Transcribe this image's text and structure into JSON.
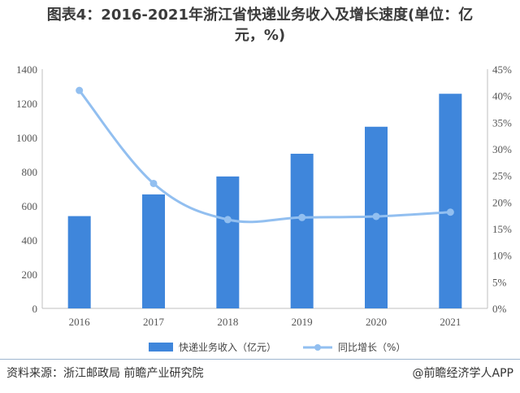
{
  "title": {
    "line1": "图表4：2016-2021年浙江省快递业务收入及增长速度(单位：亿",
    "line2": "元，%)"
  },
  "footer": {
    "source": "资料来源：浙江邮政局 前瞻产业研究院",
    "brand": "@前瞻经济学人APP"
  },
  "colors": {
    "bar": "#3f86db",
    "line": "#92bff0",
    "axis": "#bfbfbf"
  },
  "chart_data": {
    "type": "bar",
    "categories": [
      "2016",
      "2017",
      "2018",
      "2019",
      "2020",
      "2021"
    ],
    "series": [
      {
        "name": "快递业务收入（亿元）",
        "type": "bar",
        "axis": "left",
        "values": [
          540,
          667,
          772,
          905,
          1063,
          1256
        ]
      },
      {
        "name": "同比增长（%）",
        "type": "line",
        "axis": "right",
        "values": [
          41,
          23.5,
          16.7,
          17.1,
          17.3,
          18.1
        ]
      }
    ],
    "y_left": {
      "lim": [
        0,
        1400
      ],
      "ticks": [
        "0",
        "200",
        "400",
        "600",
        "800",
        "1000",
        "1200",
        "1400"
      ]
    },
    "y_right": {
      "lim": [
        0,
        45
      ],
      "ticks": [
        "0%",
        "5%",
        "10%",
        "15%",
        "20%",
        "25%",
        "30%",
        "35%",
        "40%",
        "45%"
      ]
    },
    "legend_position": "bottom",
    "grid": false
  }
}
